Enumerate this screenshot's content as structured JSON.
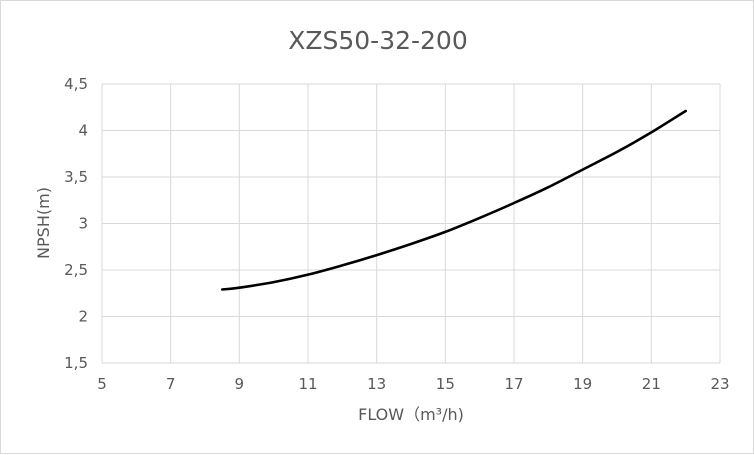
{
  "chart_data": {
    "type": "line",
    "title": "XZS50-32-200",
    "xlabel": "FLOW（m³/h)",
    "ylabel": "NPSH(m)",
    "xlim": [
      5,
      23
    ],
    "ylim": [
      1.5,
      4.5
    ],
    "x_ticks": [
      5,
      7,
      9,
      11,
      13,
      15,
      17,
      19,
      21,
      23
    ],
    "x_tick_labels": [
      "5",
      "7",
      "9",
      "11",
      "13",
      "15",
      "17",
      "19",
      "21",
      "23"
    ],
    "y_ticks": [
      1.5,
      2,
      2.5,
      3,
      3.5,
      4,
      4.5
    ],
    "y_tick_labels": [
      "1,5",
      "2",
      "2,5",
      "3",
      "3,5",
      "4",
      "4,5"
    ],
    "grid": true,
    "legend": "none",
    "series": [
      {
        "color": "#000000",
        "x": [
          8.5,
          9,
          10,
          11,
          12,
          13,
          14,
          15,
          16,
          17,
          18,
          19,
          20,
          21,
          22
        ],
        "y": [
          2.29,
          2.31,
          2.37,
          2.45,
          2.55,
          2.66,
          2.78,
          2.91,
          3.06,
          3.22,
          3.39,
          3.58,
          3.77,
          3.98,
          4.21
        ]
      }
    ]
  }
}
